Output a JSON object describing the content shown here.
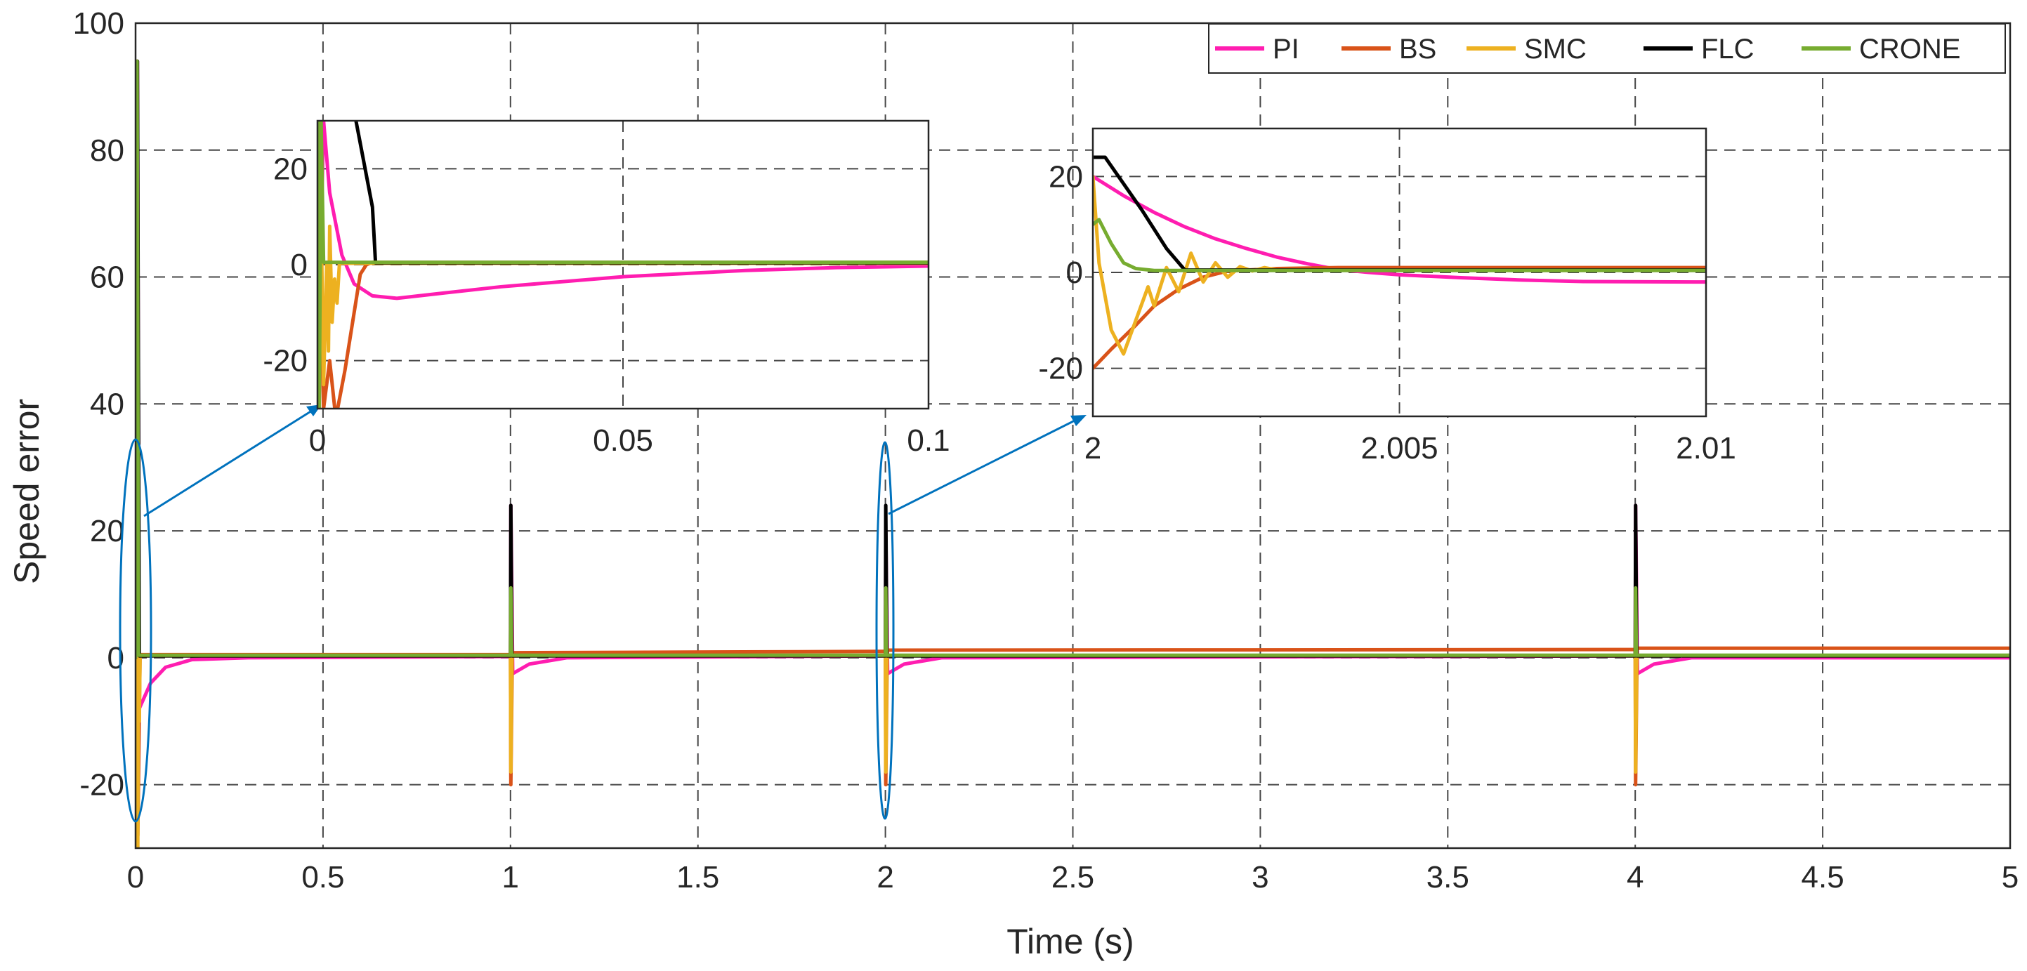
{
  "chart_data": {
    "type": "line",
    "main": {
      "xlabel": "Time (s)",
      "ylabel": "Speed error",
      "xlim": [
        0,
        5
      ],
      "ylim": [
        -30,
        100
      ],
      "xticks": [
        0,
        0.5,
        1,
        1.5,
        2,
        2.5,
        3,
        3.5,
        4,
        4.5,
        5
      ],
      "xtick_labels": [
        "0",
        "0.5",
        "1",
        "1.5",
        "2",
        "2.5",
        "3",
        "3.5",
        "4",
        "4.5",
        "5"
      ],
      "yticks": [
        -20,
        0,
        20,
        40,
        60,
        80,
        100
      ],
      "ytick_labels": [
        "-20",
        "0",
        "20",
        "40",
        "60",
        "80",
        "100"
      ],
      "grid": true,
      "legend_position": "top-right",
      "series": [
        {
          "name": "PI",
          "color": "#FF1DB0",
          "points": [
            [
              0,
              0
            ],
            [
              0.005,
              94
            ],
            [
              0.01,
              -8
            ],
            [
              0.04,
              -4
            ],
            [
              0.08,
              -1.5
            ],
            [
              0.15,
              -0.3
            ],
            [
              0.3,
              0
            ],
            [
              1,
              0.2
            ],
            [
              1.001,
              24
            ],
            [
              1.006,
              -2.5
            ],
            [
              1.05,
              -1
            ],
            [
              1.15,
              0
            ],
            [
              2,
              0.3
            ],
            [
              2.001,
              20
            ],
            [
              2.006,
              -2.5
            ],
            [
              2.05,
              -1
            ],
            [
              2.15,
              0
            ],
            [
              4,
              0.3
            ],
            [
              4.001,
              24
            ],
            [
              4.006,
              -2.5
            ],
            [
              4.05,
              -1
            ],
            [
              4.15,
              0
            ],
            [
              5,
              0
            ]
          ]
        },
        {
          "name": "BS",
          "color": "#D95319",
          "points": [
            [
              0,
              0
            ],
            [
              0.004,
              94
            ],
            [
              0.006,
              -28
            ],
            [
              0.012,
              0.5
            ],
            [
              1,
              0.5
            ],
            [
              1.001,
              -20
            ],
            [
              1.005,
              0.8
            ],
            [
              2,
              1.0
            ],
            [
              2.001,
              -20
            ],
            [
              2.005,
              1.2
            ],
            [
              4,
              1.3
            ],
            [
              4.001,
              -20
            ],
            [
              4.005,
              1.5
            ],
            [
              5,
              1.5
            ]
          ]
        },
        {
          "name": "SMC",
          "color": "#EDB120",
          "points": [
            [
              0,
              0
            ],
            [
              0.004,
              94
            ],
            [
              0.006,
              -30
            ],
            [
              0.008,
              15
            ],
            [
              0.01,
              -10
            ],
            [
              0.012,
              0.3
            ],
            [
              1,
              0.3
            ],
            [
              1.001,
              -18
            ],
            [
              1.004,
              0.3
            ],
            [
              2,
              0.3
            ],
            [
              2.001,
              -18
            ],
            [
              2.004,
              0.3
            ],
            [
              4,
              0.3
            ],
            [
              4.001,
              -18
            ],
            [
              4.004,
              0.3
            ],
            [
              5,
              0.3
            ]
          ]
        },
        {
          "name": "FLC",
          "color": "#000000",
          "points": [
            [
              0,
              0
            ],
            [
              0.005,
              94
            ],
            [
              0.01,
              0.3
            ],
            [
              1,
              0.3
            ],
            [
              1.001,
              24
            ],
            [
              1.004,
              0.3
            ],
            [
              2,
              0.3
            ],
            [
              2.001,
              24
            ],
            [
              2.004,
              0.3
            ],
            [
              4,
              0.3
            ],
            [
              4.001,
              24
            ],
            [
              4.004,
              0.3
            ],
            [
              5,
              0.3
            ]
          ]
        },
        {
          "name": "CRONE",
          "color": "#77AC30",
          "points": [
            [
              0,
              0
            ],
            [
              0.004,
              94
            ],
            [
              0.008,
              0.4
            ],
            [
              1,
              0.4
            ],
            [
              1.001,
              11
            ],
            [
              1.003,
              0.4
            ],
            [
              2,
              0.4
            ],
            [
              2.001,
              11
            ],
            [
              2.003,
              0.4
            ],
            [
              4,
              0.4
            ],
            [
              4.001,
              11
            ],
            [
              4.003,
              0.4
            ],
            [
              5,
              0.4
            ]
          ]
        }
      ]
    },
    "inset1": {
      "xlim": [
        0,
        0.1
      ],
      "ylim": [
        -30,
        30
      ],
      "xticks": [
        0,
        0.05,
        0.1
      ],
      "xtick_labels": [
        "0",
        "0.05",
        "0.1"
      ],
      "yticks": [
        -20,
        0,
        20
      ],
      "ytick_labels": [
        "-20",
        "0",
        "20"
      ],
      "series": [
        {
          "name": "PI",
          "color": "#FF1DB0",
          "points": [
            [
              0,
              -30
            ],
            [
              0.001,
              30
            ],
            [
              0.002,
              15
            ],
            [
              0.004,
              2
            ],
            [
              0.006,
              -4
            ],
            [
              0.009,
              -6.5
            ],
            [
              0.013,
              -7
            ],
            [
              0.02,
              -6
            ],
            [
              0.03,
              -4.6
            ],
            [
              0.05,
              -2.5
            ],
            [
              0.07,
              -1.2
            ],
            [
              0.085,
              -0.6
            ],
            [
              0.1,
              -0.3
            ]
          ]
        },
        {
          "name": "BS",
          "color": "#D95319",
          "points": [
            [
              0,
              30
            ],
            [
              0.001,
              -30
            ],
            [
              0.002,
              -20
            ],
            [
              0.003,
              -32
            ],
            [
              0.0045,
              -22
            ],
            [
              0.006,
              -10
            ],
            [
              0.007,
              -2
            ],
            [
              0.008,
              0
            ],
            [
              0.009,
              0.5
            ],
            [
              0.1,
              0.5
            ]
          ]
        },
        {
          "name": "SMC",
          "color": "#EDB120",
          "points": [
            [
              0,
              30
            ],
            [
              0.0002,
              -30
            ],
            [
              0.0006,
              10
            ],
            [
              0.001,
              -25
            ],
            [
              0.0015,
              0
            ],
            [
              0.0018,
              -18
            ],
            [
              0.002,
              8
            ],
            [
              0.0024,
              -12
            ],
            [
              0.0028,
              -3
            ],
            [
              0.0032,
              -8
            ],
            [
              0.0036,
              0.3
            ],
            [
              0.1,
              0.3
            ]
          ]
        },
        {
          "name": "FLC",
          "color": "#000000",
          "points": [
            [
              0.006,
              32
            ],
            [
              0.009,
              12
            ],
            [
              0.0095,
              0.4
            ],
            [
              0.1,
              0.4
            ]
          ]
        },
        {
          "name": "CRONE",
          "color": "#77AC30",
          "points": [
            [
              0,
              30
            ],
            [
              0.0001,
              30
            ],
            [
              0.0003,
              -30
            ],
            [
              0.0006,
              30
            ],
            [
              0.001,
              0.5
            ],
            [
              0.1,
              0.5
            ]
          ]
        }
      ]
    },
    "inset2": {
      "xlim": [
        2,
        2.01
      ],
      "ylim": [
        -30,
        30
      ],
      "xticks": [
        2,
        2.005,
        2.01
      ],
      "xtick_labels": [
        "2",
        "2.005",
        "2.01"
      ],
      "yticks": [
        -20,
        0,
        20
      ],
      "ytick_labels": [
        "-20",
        "0",
        "20"
      ],
      "series": [
        {
          "name": "PI",
          "color": "#FF1DB0",
          "points": [
            [
              2,
              20
            ],
            [
              2.0005,
              16
            ],
            [
              2.001,
              12.5
            ],
            [
              2.0015,
              9.5
            ],
            [
              2.002,
              7
            ],
            [
              2.0025,
              5
            ],
            [
              2.003,
              3.2
            ],
            [
              2.0035,
              1.8
            ],
            [
              2.004,
              0.6
            ],
            [
              2.0045,
              0
            ],
            [
              2.005,
              -0.5
            ],
            [
              2.006,
              -1.1
            ],
            [
              2.007,
              -1.6
            ],
            [
              2.008,
              -1.9
            ],
            [
              2.01,
              -2
            ]
          ]
        },
        {
          "name": "BS",
          "color": "#D95319",
          "points": [
            [
              2,
              -20
            ],
            [
              2.0003,
              -16
            ],
            [
              2.0007,
              -11
            ],
            [
              2.001,
              -7
            ],
            [
              2.0014,
              -3.5
            ],
            [
              2.0018,
              -1
            ],
            [
              2.0022,
              0.3
            ],
            [
              2.003,
              0.8
            ],
            [
              2.004,
              1
            ],
            [
              2.01,
              1
            ]
          ]
        },
        {
          "name": "SMC",
          "color": "#EDB120",
          "points": [
            [
              2,
              20
            ],
            [
              2.0001,
              2
            ],
            [
              2.0003,
              -12
            ],
            [
              2.0005,
              -17
            ],
            [
              2.0007,
              -10
            ],
            [
              2.0009,
              -3
            ],
            [
              2.001,
              -7
            ],
            [
              2.0012,
              1
            ],
            [
              2.0014,
              -4
            ],
            [
              2.0016,
              4
            ],
            [
              2.0018,
              -2
            ],
            [
              2.002,
              2
            ],
            [
              2.0022,
              -1
            ],
            [
              2.0024,
              1.2
            ],
            [
              2.0026,
              0.3
            ],
            [
              2.0028,
              1
            ],
            [
              2.003,
              0.5
            ],
            [
              2.0035,
              0.5
            ],
            [
              2.01,
              0.5
            ]
          ]
        },
        {
          "name": "FLC",
          "color": "#000000",
          "points": [
            [
              2,
              24
            ],
            [
              2.0002,
              24
            ],
            [
              2.0008,
              13
            ],
            [
              2.0012,
              5
            ],
            [
              2.0015,
              0.5
            ],
            [
              2.01,
              0.5
            ]
          ]
        },
        {
          "name": "CRONE",
          "color": "#77AC30",
          "points": [
            [
              2,
              10
            ],
            [
              2.0001,
              11
            ],
            [
              2.0003,
              6
            ],
            [
              2.0005,
              2
            ],
            [
              2.0007,
              0.8
            ],
            [
              2.001,
              0.4
            ],
            [
              2.01,
              0.4
            ]
          ]
        }
      ]
    },
    "legend": [
      "PI",
      "BS",
      "SMC",
      "FLC",
      "CRONE"
    ]
  }
}
